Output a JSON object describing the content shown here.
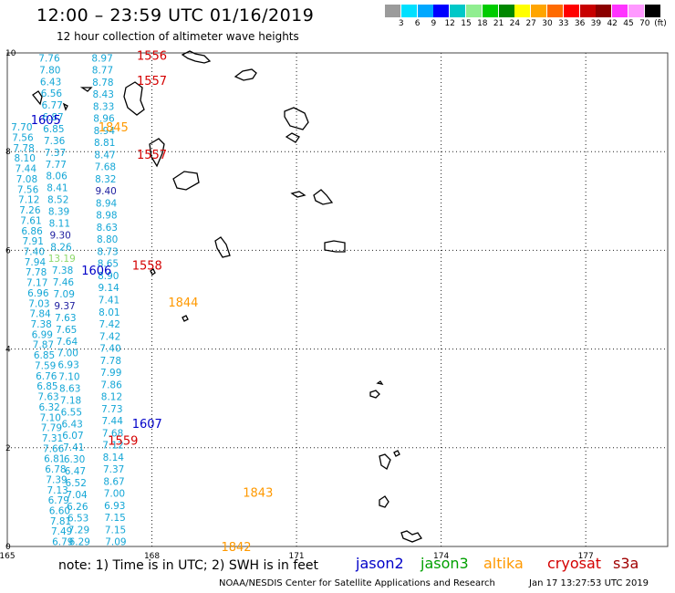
{
  "title": "12:00 – 23:59 UTC 01/16/2019",
  "subtitle": "12 hour collection of altimeter wave heights",
  "colorbar": {
    "unit": "(ft)",
    "colors": [
      "#9b9b9b",
      "#00e0ff",
      "#00a8ff",
      "#0000ff",
      "#00c8c8",
      "#90ee90",
      "#00cc00",
      "#008800",
      "#ffff00",
      "#ffa500",
      "#ff6a00",
      "#ff0000",
      "#c80000",
      "#8b0000",
      "#ff33ff",
      "#ff99ff",
      "#000000"
    ],
    "labels": [
      "3",
      "6",
      "9",
      "12",
      "15",
      "18",
      "21",
      "24",
      "27",
      "30",
      "33",
      "36",
      "39",
      "42",
      "45",
      "70"
    ]
  },
  "axes": {
    "x_ticks": [
      "165",
      "168",
      "171",
      "174",
      "177"
    ],
    "y_ticks": [
      "0",
      "2",
      "4",
      "6",
      "8",
      "10"
    ],
    "x_range": [
      165,
      178.7
    ],
    "y_range": [
      0,
      10
    ]
  },
  "tracks": [
    {
      "id": "A",
      "color": "#13a6d6",
      "x0": 165.87,
      "y0": 9.9,
      "x1": 166.5,
      "y1": 0.1,
      "values": [
        "7.76",
        "7.80",
        "6.43",
        "6.56",
        "6.77",
        "6.87",
        "6.85",
        "7.36",
        "7.37",
        "7.77",
        "8.06",
        "8.41",
        "8.52",
        "8.39",
        "8.11",
        "9.30",
        "8.26",
        "13.19",
        "7.38",
        "7.46",
        "7.09",
        "9.37",
        "7.63",
        "7.65",
        "7.64",
        "7.00",
        "6.93",
        "7.10",
        "8.63",
        "7.18",
        "6.55",
        "6.43",
        "6.07",
        "7.41",
        "6.30",
        "6.47",
        "6.52",
        "7.04",
        "6.26",
        "6.53",
        "7.29",
        "6.29"
      ]
    },
    {
      "id": "B",
      "color": "#13a6d6",
      "x0": 166.97,
      "y0": 9.9,
      "x1": 167.25,
      "y1": 0.1,
      "values": [
        "8.97",
        "8.77",
        "8.78",
        "8.43",
        "8.33",
        "8.96",
        "8.94",
        "8.81",
        "8.47",
        "7.68",
        "8.32",
        "9.40",
        "8.94",
        "8.98",
        "8.63",
        "8.80",
        "8.73",
        "8.65",
        "8.90",
        "9.14",
        "7.41",
        "8.01",
        "7.42",
        "7.42",
        "7.40",
        "7.78",
        "7.99",
        "7.86",
        "8.12",
        "7.73",
        "7.44",
        "7.68",
        "7.12",
        "8.14",
        "7.37",
        "8.67",
        "7.00",
        "6.93",
        "7.15",
        "7.15",
        "7.09"
      ]
    },
    {
      "id": "C",
      "color": "#13a6d6",
      "x0": 165.3,
      "y0": 8.5,
      "x1": 166.15,
      "y1": 0.1,
      "values": [
        "7.70",
        "7.56",
        "7.78",
        "8.10",
        "7.44",
        "7.08",
        "7.56",
        "7.12",
        "7.26",
        "7.61",
        "6.86",
        "7.91",
        "7.40",
        "7.94",
        "7.78",
        "7.17",
        "6.96",
        "7.03",
        "7.84",
        "7.38",
        "6.99",
        "7.87",
        "6.85",
        "7.59",
        "6.76",
        "6.85",
        "7.63",
        "6.32",
        "7.10",
        "7.79",
        "7.31",
        "7.66",
        "6.81",
        "6.78",
        "7.39",
        "7.13",
        "6.79",
        "6.60",
        "7.81",
        "7.49",
        "6.79"
      ]
    }
  ],
  "passes": [
    {
      "label": "1556",
      "color": "#d40000",
      "lon": 168.0,
      "lat": 9.95
    },
    {
      "label": "1557",
      "color": "#d40000",
      "lon": 168.0,
      "lat": 9.45
    },
    {
      "label": "1605",
      "color": "#0000c8",
      "lon": 165.8,
      "lat": 8.65
    },
    {
      "label": "1845",
      "color": "#ff9900",
      "lon": 167.2,
      "lat": 8.5
    },
    {
      "label": "1557",
      "color": "#d40000",
      "lon": 168.0,
      "lat": 7.95
    },
    {
      "label": "1606",
      "color": "#0000c8",
      "lon": 166.85,
      "lat": 5.6
    },
    {
      "label": "1558",
      "color": "#d40000",
      "lon": 167.9,
      "lat": 5.7
    },
    {
      "label": "1844",
      "color": "#ff9900",
      "lon": 168.65,
      "lat": 4.95
    },
    {
      "label": "1607",
      "color": "#0000c8",
      "lon": 167.9,
      "lat": 2.5
    },
    {
      "label": "1559",
      "color": "#d40000",
      "lon": 167.4,
      "lat": 2.15
    },
    {
      "label": "1843",
      "color": "#ff9900",
      "lon": 170.2,
      "lat": 1.1
    },
    {
      "label": "1842",
      "color": "#ff9900",
      "lon": 169.75,
      "lat": 0.0
    }
  ],
  "note": "note:  1) Time is in UTC;  2) SWH is in feet",
  "missions": [
    {
      "name": "jason2",
      "color": "#0000c8"
    },
    {
      "name": "jason3",
      "color": "#00a000"
    },
    {
      "name": "altika",
      "color": "#ff9900"
    },
    {
      "name": "cryosat",
      "color": "#d40000"
    },
    {
      "name": "s3a",
      "color": "#a00000"
    }
  ],
  "footer": "NOAA/NESDIS Center for Satellite Applications and Research",
  "footer_time": "Jan 17 13:27:53 UTC 2019"
}
